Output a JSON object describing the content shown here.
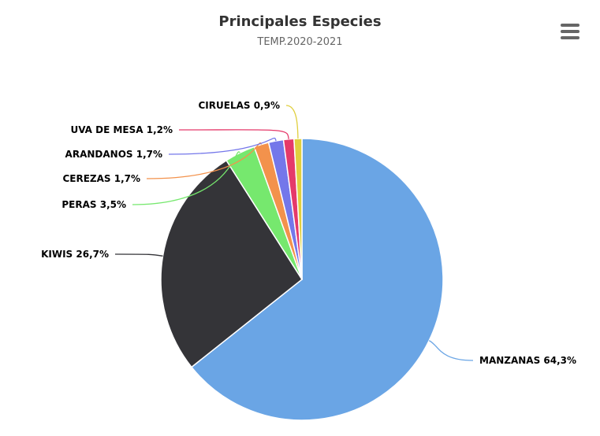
{
  "chart": {
    "menu_icon": "hamburger-menu-icon"
  },
  "chart_data": {
    "type": "pie",
    "title": "Principales Especies",
    "subtitle": "TEMP.2020-2021",
    "slices": [
      {
        "label": "MANZANAS 64,3%",
        "value": 64.3,
        "color": "#6aa5e5"
      },
      {
        "label": "KIWIS 26,7%",
        "value": 26.7,
        "color": "#343438"
      },
      {
        "label": "PERAS 3,5%",
        "value": 3.5,
        "color": "#76e86e"
      },
      {
        "label": "CEREZAS 1,7%",
        "value": 1.7,
        "color": "#f3924c"
      },
      {
        "label": "ARANDANOS 1,7%",
        "value": 1.7,
        "color": "#7477ea"
      },
      {
        "label": "UVA DE MESA 1,2%",
        "value": 1.2,
        "color": "#e5396a"
      },
      {
        "label": "CIRUELAS 0,9%",
        "value": 0.9,
        "color": "#e0cf3e"
      }
    ]
  }
}
